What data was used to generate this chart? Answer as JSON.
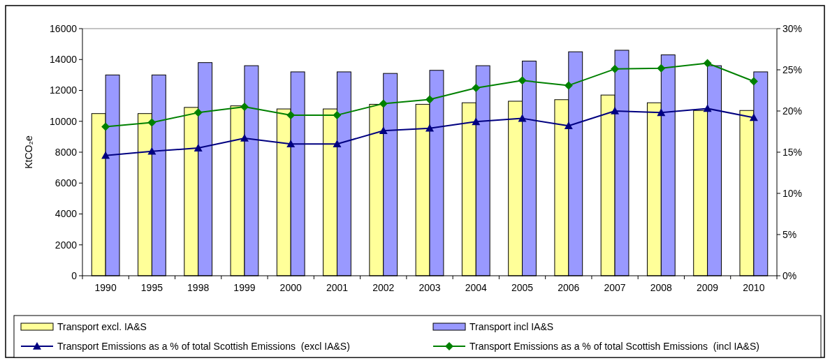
{
  "chart_data": {
    "type": "bar",
    "ylabel": "KtCO₂e",
    "categories": [
      "1990",
      "1995",
      "1998",
      "1999",
      "2000",
      "2001",
      "2002",
      "2003",
      "2004",
      "2005",
      "2006",
      "2007",
      "2008",
      "2009",
      "2010"
    ],
    "series": [
      {
        "name": "Transport excl. IA&S",
        "color": "#ffff99",
        "values": [
          10500,
          10500,
          10900,
          11000,
          10800,
          10800,
          11100,
          11100,
          11200,
          11300,
          11400,
          11700,
          11200,
          10700,
          10700
        ]
      },
      {
        "name": "Transport incl IA&S",
        "color": "#9999ff",
        "values": [
          13000,
          13000,
          13800,
          13600,
          13200,
          13200,
          13100,
          13300,
          13600,
          13900,
          14500,
          14600,
          14300,
          13600,
          13200
        ]
      },
      {
        "name": "Transport Emissions as a % of total Scottish Emissions  (excl IA&S)",
        "type": "line",
        "axis": "y2",
        "marker": "triangle",
        "color": "#000080",
        "values": [
          14.6,
          15.1,
          15.5,
          16.7,
          16.0,
          16.0,
          17.6,
          17.9,
          18.7,
          19.1,
          18.2,
          20.0,
          19.8,
          20.3,
          19.2
        ]
      },
      {
        "name": "Transport Emissions as a % of total Scottish Emissions  (incl IA&S)",
        "type": "line",
        "axis": "y2",
        "marker": "diamond",
        "color": "#008000",
        "values": [
          18.1,
          18.6,
          19.8,
          20.5,
          19.5,
          19.5,
          20.9,
          21.4,
          22.8,
          23.7,
          23.1,
          25.1,
          25.2,
          25.8,
          23.6
        ]
      }
    ],
    "ylim": [
      0,
      16000
    ],
    "yticks": [
      0,
      2000,
      4000,
      6000,
      8000,
      10000,
      12000,
      14000,
      16000
    ],
    "y2lim": [
      0,
      30
    ],
    "y2ticks": [
      {
        "value": 0,
        "label": "0%"
      },
      {
        "value": 5,
        "label": "5%"
      },
      {
        "value": 10,
        "label": "10%"
      },
      {
        "value": 15,
        "label": "15%"
      },
      {
        "value": 20,
        "label": "20%"
      },
      {
        "value": 25,
        "label": "25%"
      },
      {
        "value": 30,
        "label": "30%"
      }
    ],
    "legend": "bottom"
  }
}
